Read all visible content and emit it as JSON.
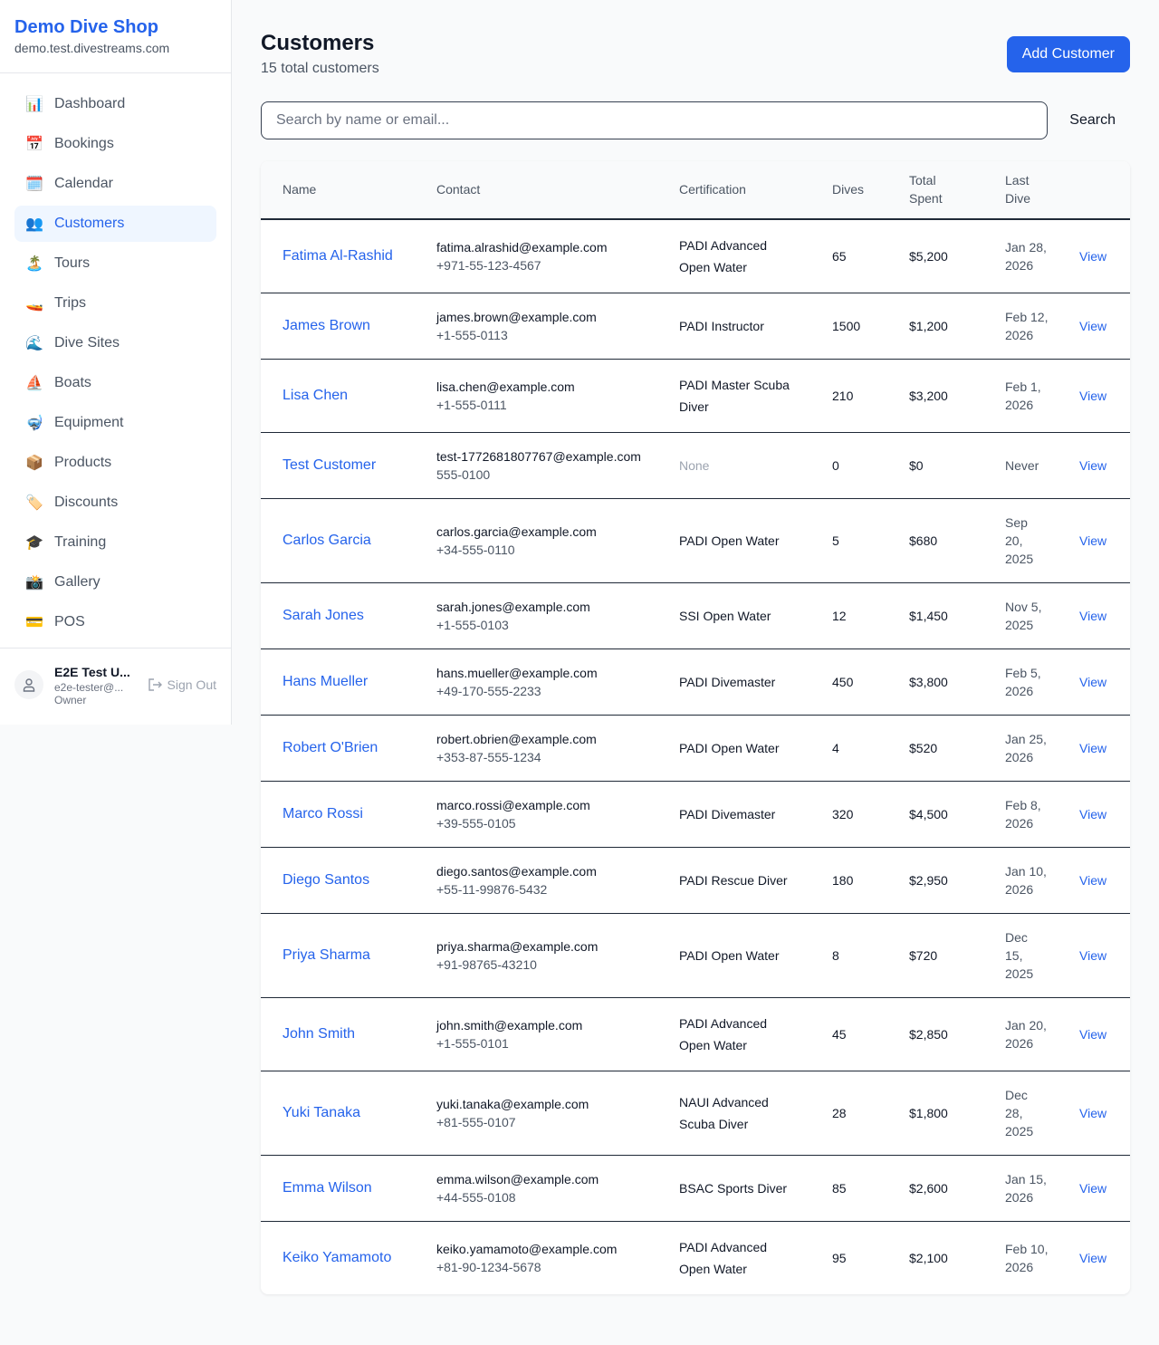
{
  "sidebar": {
    "shop_name": "Demo Dive Shop",
    "domain": "demo.test.divestreams.com",
    "items": [
      {
        "label": "Dashboard",
        "icon": "📊",
        "name": "chart-icon"
      },
      {
        "label": "Bookings",
        "icon": "📅",
        "name": "calendar-date-icon"
      },
      {
        "label": "Calendar",
        "icon": "🗓️",
        "name": "calendar-icon"
      },
      {
        "label": "Customers",
        "icon": "👥",
        "name": "users-icon",
        "active": true
      },
      {
        "label": "Tours",
        "icon": "🏝️",
        "name": "island-icon"
      },
      {
        "label": "Trips",
        "icon": "🚤",
        "name": "speedboat-icon"
      },
      {
        "label": "Dive Sites",
        "icon": "🌊",
        "name": "wave-icon"
      },
      {
        "label": "Boats",
        "icon": "⛵",
        "name": "sailboat-icon"
      },
      {
        "label": "Equipment",
        "icon": "🤿",
        "name": "diving-mask-icon"
      },
      {
        "label": "Products",
        "icon": "📦",
        "name": "package-icon"
      },
      {
        "label": "Discounts",
        "icon": "🏷️",
        "name": "tag-icon"
      },
      {
        "label": "Training",
        "icon": "🎓",
        "name": "graduation-cap-icon"
      },
      {
        "label": "Gallery",
        "icon": "📸",
        "name": "camera-icon"
      },
      {
        "label": "POS",
        "icon": "💳",
        "name": "credit-card-icon"
      }
    ],
    "user": {
      "name": "E2E Test U...",
      "email": "e2e-tester@...",
      "role": "Owner",
      "sign_out": "Sign Out"
    }
  },
  "header": {
    "title": "Customers",
    "subtitle": "15 total customers",
    "add_button": "Add Customer"
  },
  "search": {
    "placeholder": "Search by name or email...",
    "button": "Search"
  },
  "table": {
    "columns": [
      "Name",
      "Contact",
      "Certification",
      "Dives",
      "Total Spent",
      "Last Dive"
    ],
    "view_label": "View",
    "rows": [
      {
        "name": "Fatima Al-Rashid",
        "email": "fatima.alrashid@example.com",
        "phone": "+971-55-123-4567",
        "cert": "PADI Advanced Open Water",
        "dives": "65",
        "spent": "$5,200",
        "last": "Jan 28, 2026"
      },
      {
        "name": "James Brown",
        "email": "james.brown@example.com",
        "phone": "+1-555-0113",
        "cert": "PADI Instructor",
        "dives": "1500",
        "spent": "$1,200",
        "last": "Feb 12, 2026"
      },
      {
        "name": "Lisa Chen",
        "email": "lisa.chen@example.com",
        "phone": "+1-555-0111",
        "cert": "PADI Master Scuba Diver",
        "dives": "210",
        "spent": "$3,200",
        "last": "Feb 1, 2026"
      },
      {
        "name": "Test Customer",
        "email": "test-1772681807767@example.com",
        "phone": "555-0100",
        "cert": "None",
        "dives": "0",
        "spent": "$0",
        "last": "Never"
      },
      {
        "name": "Carlos Garcia",
        "email": "carlos.garcia@example.com",
        "phone": "+34-555-0110",
        "cert": "PADI Open Water",
        "dives": "5",
        "spent": "$680",
        "last": "Sep 20, 2025"
      },
      {
        "name": "Sarah Jones",
        "email": "sarah.jones@example.com",
        "phone": "+1-555-0103",
        "cert": "SSI Open Water",
        "dives": "12",
        "spent": "$1,450",
        "last": "Nov 5, 2025"
      },
      {
        "name": "Hans Mueller",
        "email": "hans.mueller@example.com",
        "phone": "+49-170-555-2233",
        "cert": "PADI Divemaster",
        "dives": "450",
        "spent": "$3,800",
        "last": "Feb 5, 2026"
      },
      {
        "name": "Robert O'Brien",
        "email": "robert.obrien@example.com",
        "phone": "+353-87-555-1234",
        "cert": "PADI Open Water",
        "dives": "4",
        "spent": "$520",
        "last": "Jan 25, 2026"
      },
      {
        "name": "Marco Rossi",
        "email": "marco.rossi@example.com",
        "phone": "+39-555-0105",
        "cert": "PADI Divemaster",
        "dives": "320",
        "spent": "$4,500",
        "last": "Feb 8, 2026"
      },
      {
        "name": "Diego Santos",
        "email": "diego.santos@example.com",
        "phone": "+55-11-99876-5432",
        "cert": "PADI Rescue Diver",
        "dives": "180",
        "spent": "$2,950",
        "last": "Jan 10, 2026"
      },
      {
        "name": "Priya Sharma",
        "email": "priya.sharma@example.com",
        "phone": "+91-98765-43210",
        "cert": "PADI Open Water",
        "dives": "8",
        "spent": "$720",
        "last": "Dec 15, 2025"
      },
      {
        "name": "John Smith",
        "email": "john.smith@example.com",
        "phone": "+1-555-0101",
        "cert": "PADI Advanced Open Water",
        "dives": "45",
        "spent": "$2,850",
        "last": "Jan 20, 2026"
      },
      {
        "name": "Yuki Tanaka",
        "email": "yuki.tanaka@example.com",
        "phone": "+81-555-0107",
        "cert": "NAUI Advanced Scuba Diver",
        "dives": "28",
        "spent": "$1,800",
        "last": "Dec 28, 2025"
      },
      {
        "name": "Emma Wilson",
        "email": "emma.wilson@example.com",
        "phone": "+44-555-0108",
        "cert": "BSAC Sports Diver",
        "dives": "85",
        "spent": "$2,600",
        "last": "Jan 15, 2026"
      },
      {
        "name": "Keiko Yamamoto",
        "email": "keiko.yamamoto@example.com",
        "phone": "+81-90-1234-5678",
        "cert": "PADI Advanced Open Water",
        "dives": "95",
        "spent": "$2,100",
        "last": "Feb 10, 2026"
      }
    ]
  }
}
